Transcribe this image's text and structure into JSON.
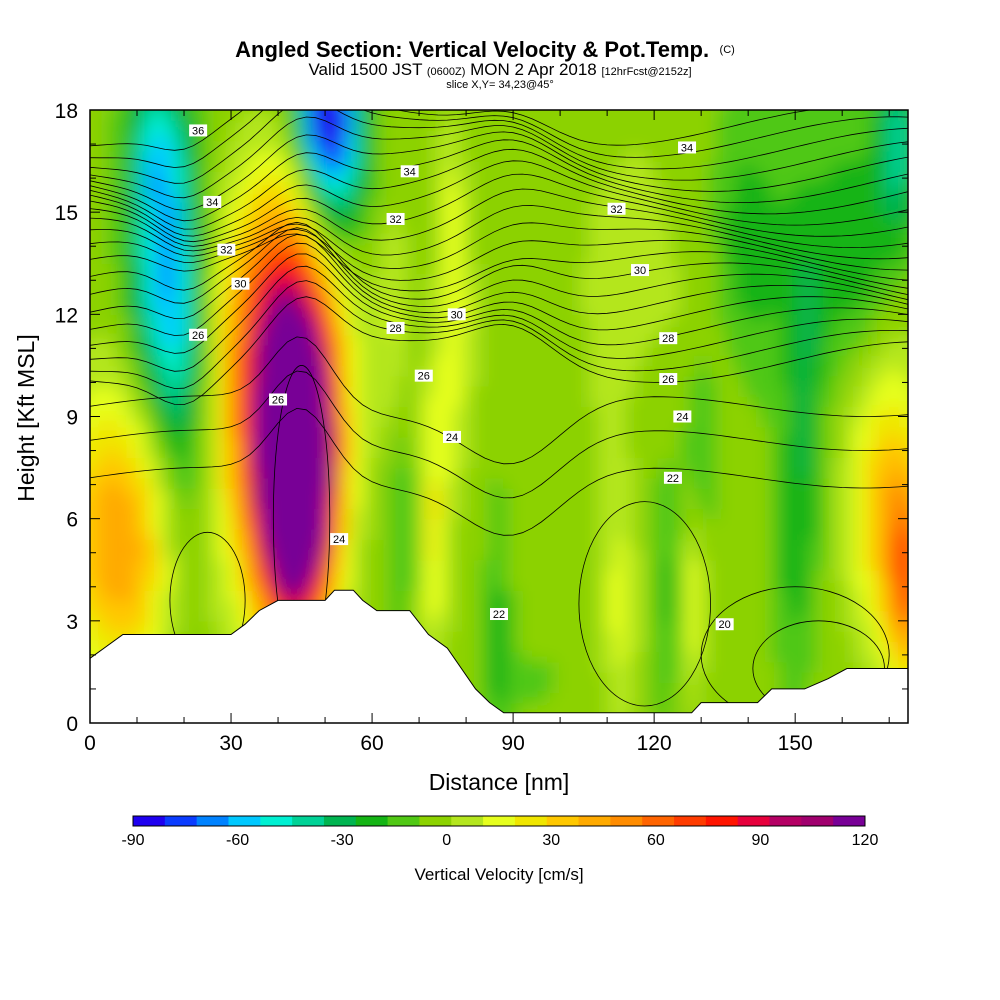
{
  "chart_data": {
    "type": "heatmap",
    "title": "Angled Section: Vertical Velocity & Pot.Temp.",
    "title_units": "(C)",
    "subtitle": {
      "pre": "Valid 1500 JST ",
      "utc": "(0600Z)",
      "mid": " MON 2 Apr 2018 ",
      "fcst": "[12hrFcst@2152z]"
    },
    "slice": "slice X,Y= 34,23@45°",
    "xlabel": "Distance [nm]",
    "ylabel": "Height [Kft MSL]",
    "xlim": [
      0,
      174
    ],
    "ylim": [
      0,
      18
    ],
    "x_ticks": [
      0,
      30,
      60,
      90,
      120,
      150
    ],
    "y_ticks": [
      0,
      3,
      6,
      9,
      12,
      15,
      18
    ],
    "colorbar": {
      "label": "Vertical Velocity [cm/s]",
      "min": -90,
      "max": 120,
      "step": 10,
      "ticks": [
        -90,
        -60,
        -30,
        0,
        30,
        60,
        90,
        120
      ],
      "colors": [
        "#1e00f0",
        "#0a3cff",
        "#0082ff",
        "#00c8ff",
        "#00f0d2",
        "#00d296",
        "#00b450",
        "#14b414",
        "#50c814",
        "#8cd200",
        "#b4e61e",
        "#e6ff1e",
        "#f0e600",
        "#ffc800",
        "#ffaa00",
        "#ff8c00",
        "#ff6400",
        "#ff3c00",
        "#ff1400",
        "#e6003c",
        "#b40064",
        "#a0006e",
        "#780096"
      ]
    },
    "theta_contour_labels": [
      {
        "text": "36",
        "x": 23,
        "y": 17.4
      },
      {
        "text": "34",
        "x": 26,
        "y": 15.3
      },
      {
        "text": "32",
        "x": 29,
        "y": 13.9
      },
      {
        "text": "30",
        "x": 32,
        "y": 12.9
      },
      {
        "text": "26",
        "x": 23,
        "y": 11.4
      },
      {
        "text": "26",
        "x": 40,
        "y": 9.5
      },
      {
        "text": "34",
        "x": 68,
        "y": 16.2
      },
      {
        "text": "32",
        "x": 65,
        "y": 14.8
      },
      {
        "text": "28",
        "x": 65,
        "y": 11.6
      },
      {
        "text": "26",
        "x": 71,
        "y": 10.2
      },
      {
        "text": "30",
        "x": 78,
        "y": 12.0
      },
      {
        "text": "24",
        "x": 77,
        "y": 8.4
      },
      {
        "text": "24",
        "x": 53,
        "y": 5.4
      },
      {
        "text": "22",
        "x": 87,
        "y": 3.2
      },
      {
        "text": "34",
        "x": 127,
        "y": 16.9
      },
      {
        "text": "32",
        "x": 112,
        "y": 15.1
      },
      {
        "text": "30",
        "x": 117,
        "y": 13.3
      },
      {
        "text": "28",
        "x": 123,
        "y": 11.3
      },
      {
        "text": "26",
        "x": 123,
        "y": 10.1
      },
      {
        "text": "24",
        "x": 126,
        "y": 9.0
      },
      {
        "text": "22",
        "x": 124,
        "y": 7.2
      },
      {
        "text": "20",
        "x": 135,
        "y": 2.9
      }
    ],
    "terrain_profile_kft": [
      [
        0,
        1.9
      ],
      [
        3,
        2.2
      ],
      [
        7,
        2.6
      ],
      [
        15,
        2.6
      ],
      [
        25,
        2.6
      ],
      [
        30,
        2.6
      ],
      [
        33,
        2.9
      ],
      [
        36,
        3.3
      ],
      [
        40,
        3.6
      ],
      [
        45,
        3.6
      ],
      [
        50,
        3.6
      ],
      [
        52,
        3.9
      ],
      [
        56,
        3.9
      ],
      [
        58,
        3.6
      ],
      [
        61,
        3.3
      ],
      [
        64,
        3.3
      ],
      [
        68,
        3.3
      ],
      [
        72,
        2.6
      ],
      [
        76,
        2.2
      ],
      [
        79,
        1.6
      ],
      [
        82,
        1.0
      ],
      [
        85,
        0.6
      ],
      [
        88,
        0.3
      ],
      [
        95,
        0.3
      ],
      [
        110,
        0.3
      ],
      [
        128,
        0.3
      ],
      [
        130,
        0.6
      ],
      [
        142,
        0.6
      ],
      [
        145,
        1.0
      ],
      [
        152,
        1.0
      ],
      [
        157,
        1.3
      ],
      [
        161,
        1.6
      ],
      [
        166,
        1.6
      ],
      [
        170,
        1.6
      ],
      [
        174,
        1.6
      ]
    ]
  }
}
